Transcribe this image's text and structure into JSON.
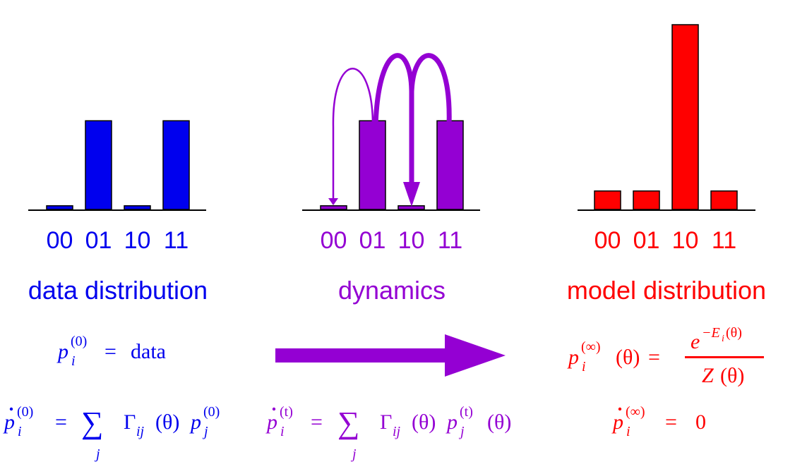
{
  "colors": {
    "data": "#0000ee",
    "dynamics": "#9400d3",
    "model": "#ff0000",
    "outline": "#000000"
  },
  "panels": [
    {
      "id": "data",
      "title": "data distribution",
      "states": [
        "00",
        "01",
        "10",
        "11"
      ],
      "probabilities": [
        0.02,
        0.48,
        0.02,
        0.48
      ]
    },
    {
      "id": "dynamics",
      "title": "dynamics",
      "states": [
        "00",
        "01",
        "10",
        "11"
      ],
      "probabilities": [
        0.02,
        0.48,
        0.02,
        0.48
      ],
      "transitions": [
        {
          "from": "01",
          "to": "00",
          "weight": "thin"
        },
        {
          "from": "01",
          "to": "10",
          "weight": "thick"
        },
        {
          "from": "11",
          "to": "10",
          "weight": "thick"
        }
      ]
    },
    {
      "id": "model",
      "title": "model distribution",
      "states": [
        "00",
        "01",
        "10",
        "11"
      ],
      "probabilities": [
        0.1,
        0.1,
        1.0,
        0.1
      ]
    }
  ],
  "equations": {
    "data_initial": "p_i^(0) = data",
    "data_rate": "ṗ_i^(0) = Σ_j Γ_ij(θ) p_j^(0)",
    "dynamics_rate": "ṗ_i^(t) = Σ_j Γ_ij(θ) p_j^(t)(θ)",
    "model_stationary": "p_i^(∞)(θ) = e^(−E_i(θ)) / Z(θ)",
    "model_rate": "ṗ_i^(∞) = 0"
  },
  "math_text": {
    "p": "p",
    "i": "i",
    "j": "j",
    "sup0": "(0)",
    "supt": "(t)",
    "supinf": "(∞)",
    "eq": "=",
    "data_word": "data",
    "sum": "∑",
    "gamma": "Γ",
    "ij": "ij",
    "theta_paren": "(θ)",
    "e": "e",
    "exp": "−E",
    "exp_i": "i",
    "exp_theta": "(θ)",
    "Z": "Z",
    "zero": "0"
  },
  "center_arrow": {
    "direction": "right"
  }
}
